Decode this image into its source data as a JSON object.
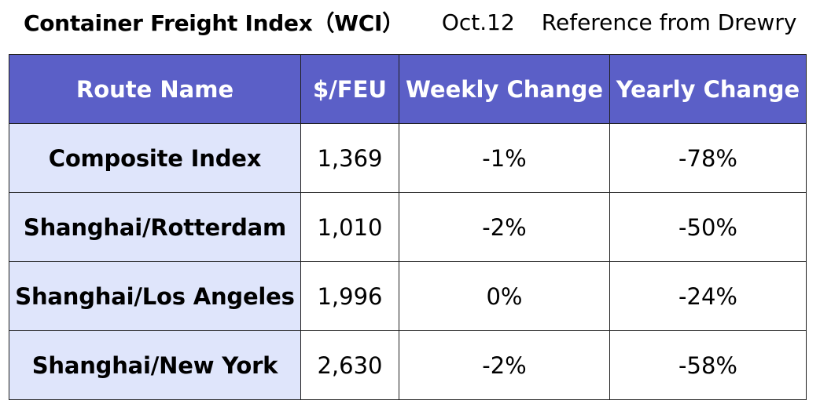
{
  "header": {
    "title": "Container Freight Index（WCI）",
    "date": "Oct.12",
    "reference": "Reference from Drewry"
  },
  "table": {
    "columns": [
      "Route Name",
      "$/FEU",
      "Weekly Change",
      "Yearly Change"
    ],
    "rows": [
      {
        "route": "Composite Index",
        "price": "1,369",
        "weekly": "-1%",
        "yearly": "-78%"
      },
      {
        "route": "Shanghai/Rotterdam",
        "price": "1,010",
        "weekly": "-2%",
        "yearly": "-50%"
      },
      {
        "route": "Shanghai/Los Angeles",
        "price": "1,996",
        "weekly": "0%",
        "yearly": "-24%"
      },
      {
        "route": "Shanghai/New York",
        "price": "2,630",
        "weekly": "-2%",
        "yearly": "-58%"
      }
    ]
  },
  "colors": {
    "header_bg": "#5b5fc7",
    "header_text": "#ffffff",
    "route_cell_bg": "#dfe5fb",
    "border": "#1f1f1f"
  }
}
